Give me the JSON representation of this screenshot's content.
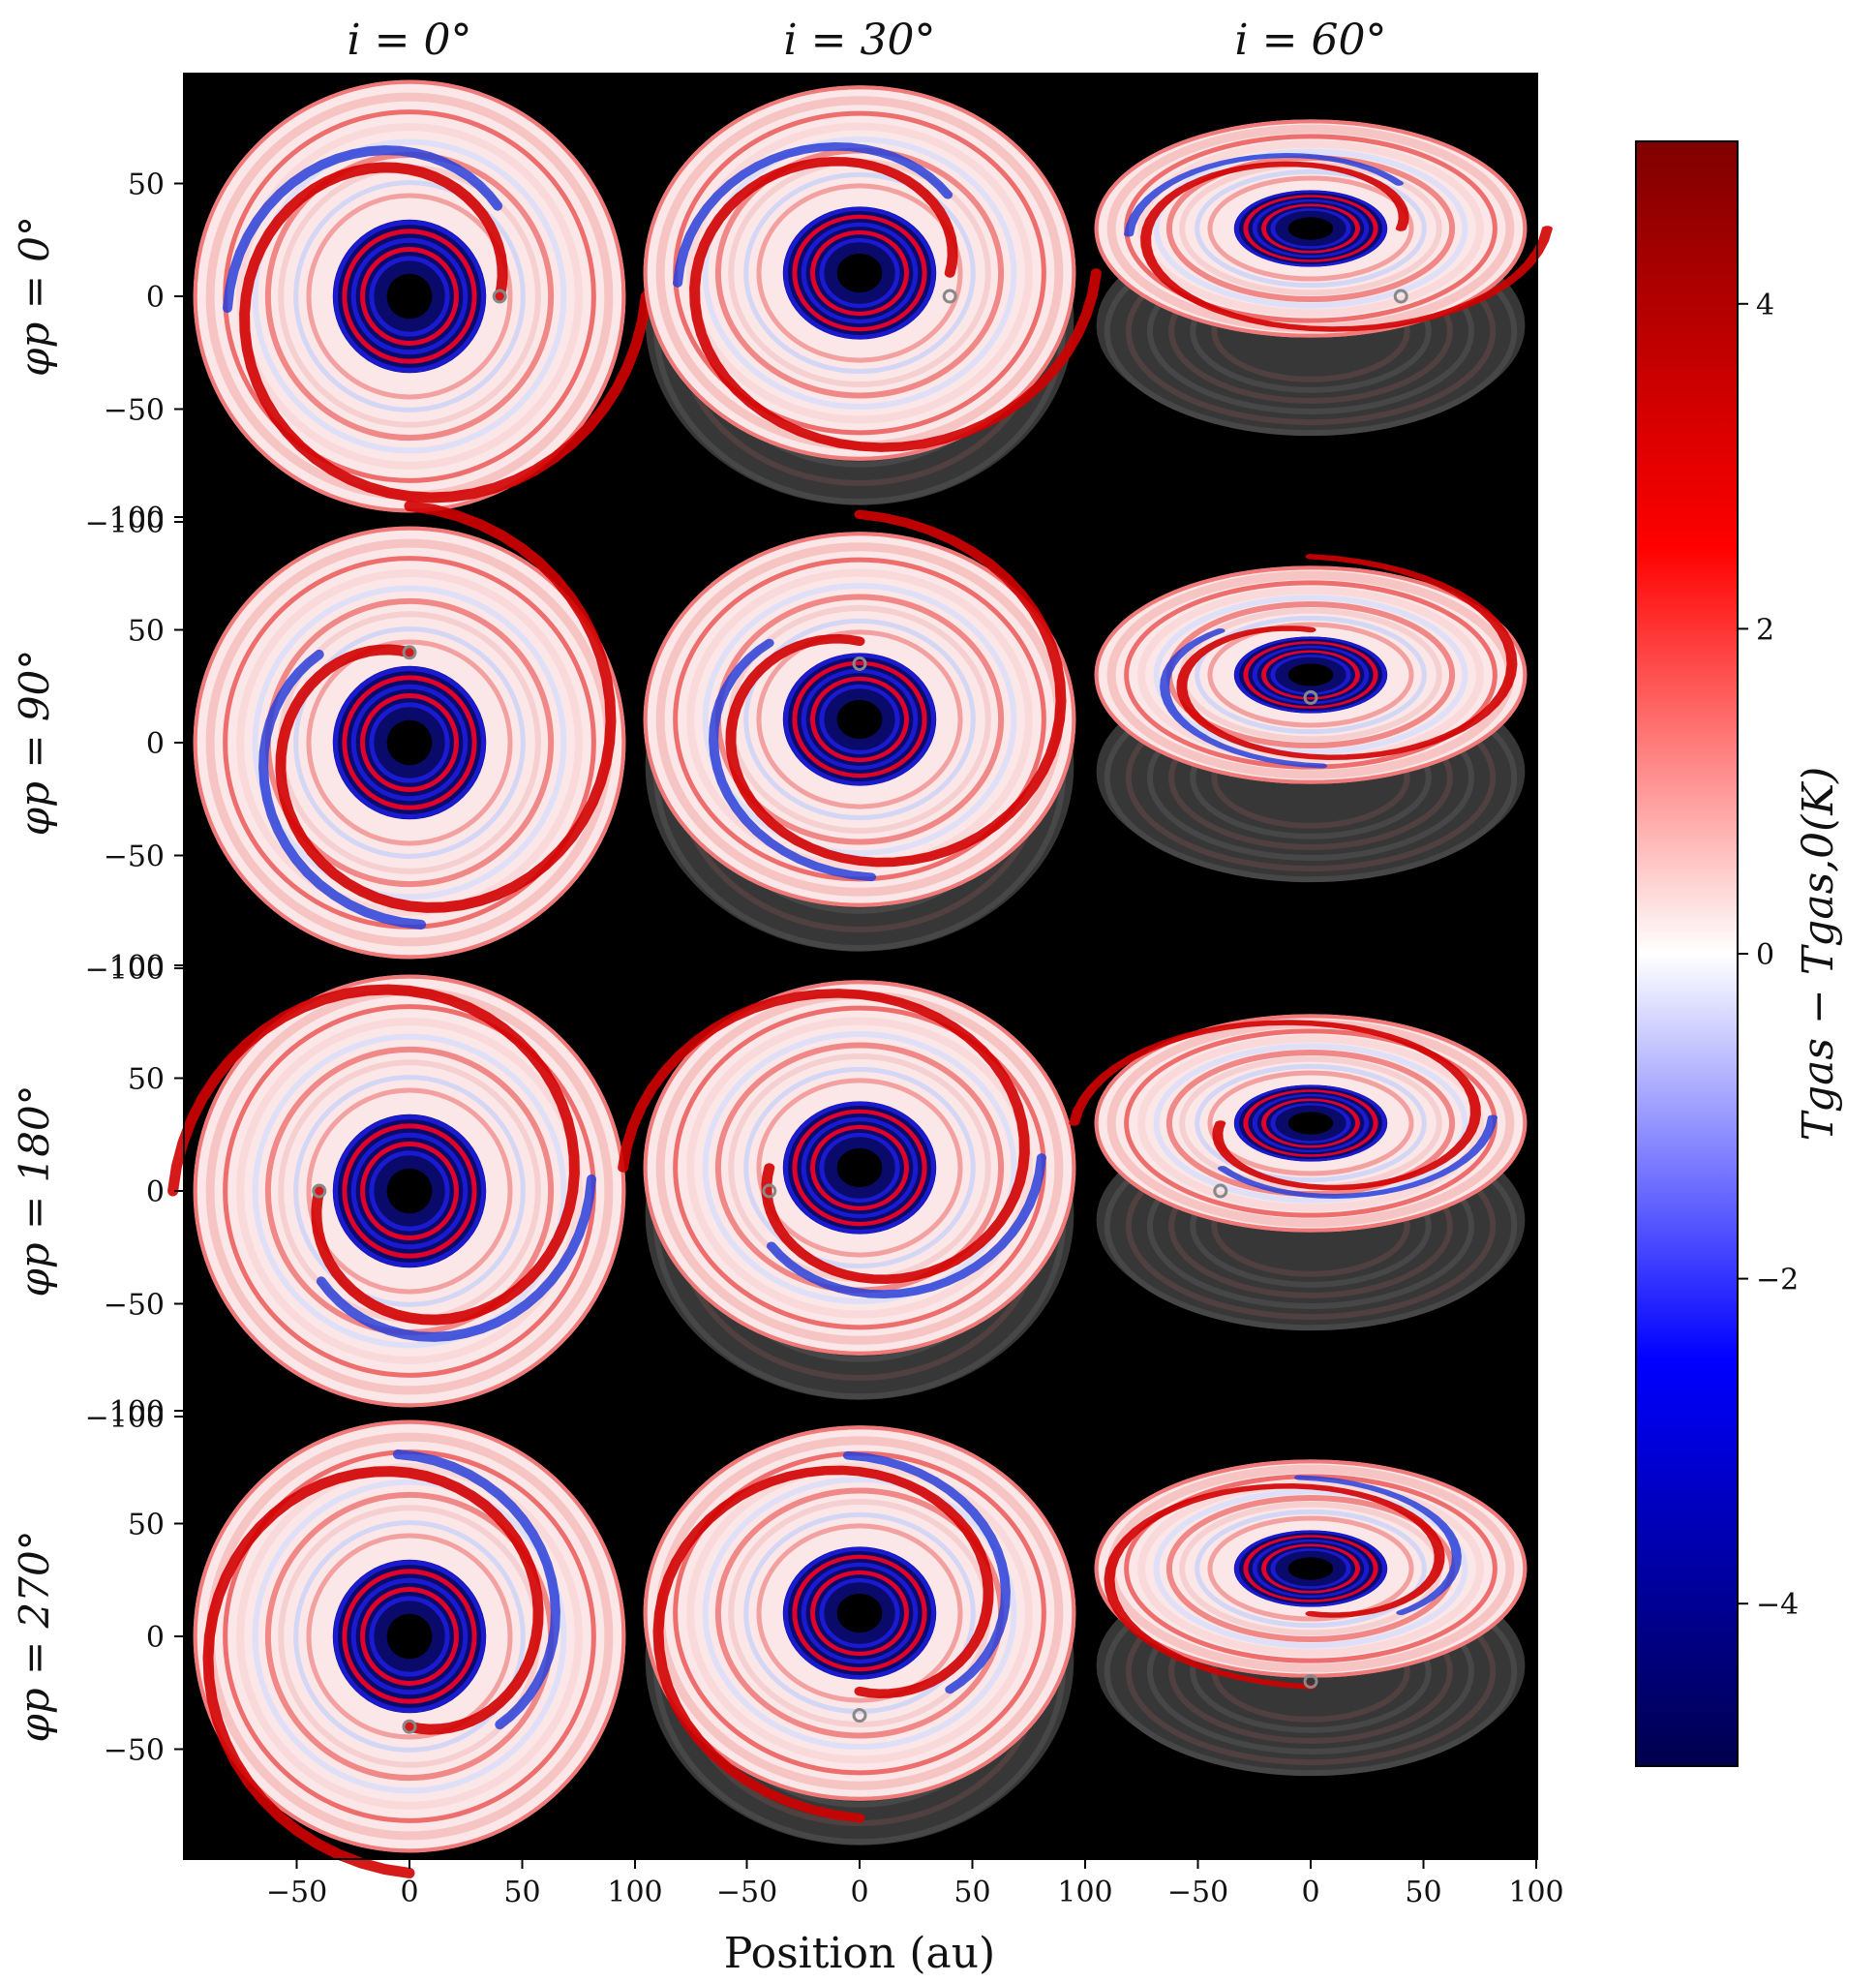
{
  "figure": {
    "column_headers": [
      "i = 0°",
      "i = 30°",
      "i = 60°"
    ],
    "row_labels": [
      "φp = 0°",
      "φp = 90°",
      "φp = 180°",
      "φp = 270°"
    ],
    "xlabel": "Position (au)",
    "colorbar_label": "Tgas − Tgas,0(K)"
  },
  "chart_data": {
    "type": "heatmap",
    "title": "",
    "xlabel": "Position (au)",
    "ylabel": "",
    "inclinations_deg": [
      0,
      30,
      60
    ],
    "planet_azimuths_deg": [
      0,
      90,
      180,
      270
    ],
    "panels_x_ticks": [
      -50,
      0,
      50,
      100
    ],
    "panels_x_range": [
      -100,
      100
    ],
    "panels_y_ticks": [
      100,
      50,
      0,
      -50,
      -100
    ],
    "panels_y_range": [
      -100,
      100
    ],
    "disk_outer_radius_au": 95,
    "disk_inner_hole_radius_au": 10,
    "planet_orbit_radius_au": 40,
    "planet_marker_positions_au": [
      [
        [
          40,
          0
        ],
        [
          40,
          0
        ],
        [
          40,
          0
        ]
      ],
      [
        [
          0,
          40
        ],
        [
          0,
          35
        ],
        [
          0,
          20
        ]
      ],
      [
        [
          -40,
          0
        ],
        [
          -40,
          0
        ],
        [
          -40,
          0
        ]
      ],
      [
        [
          0,
          -40
        ],
        [
          0,
          -35
        ],
        [
          0,
          -20
        ]
      ]
    ],
    "colorbar": {
      "label": "Tgas − Tgas,0(K)",
      "ticks": [
        4,
        2,
        0,
        -2,
        -4
      ],
      "tick_labels": [
        "4",
        "2",
        "0",
        "−2",
        "−4"
      ],
      "range": [
        -5,
        5
      ],
      "colormap": "seismic",
      "colors": [
        "#00004c",
        "#0000ff",
        "#ffffff",
        "#ff0000",
        "#7f0000"
      ]
    },
    "background_color": "#000000"
  }
}
